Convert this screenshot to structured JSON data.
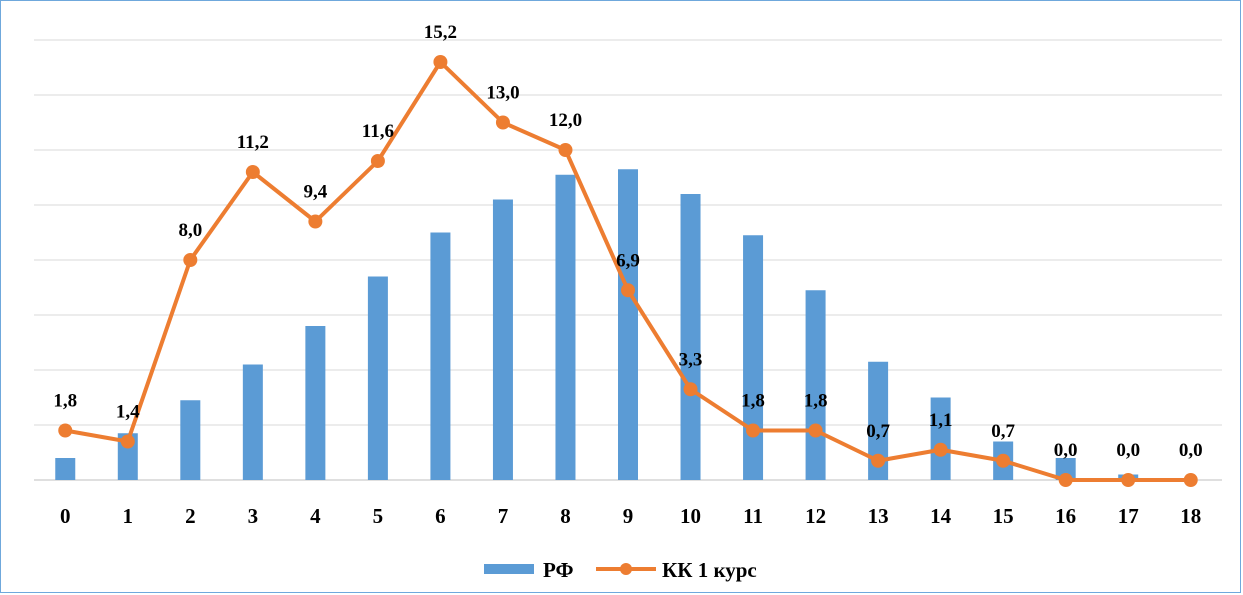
{
  "chart_data": {
    "type": "bar+line",
    "categories": [
      "0",
      "1",
      "2",
      "3",
      "4",
      "5",
      "6",
      "7",
      "8",
      "9",
      "10",
      "11",
      "12",
      "13",
      "14",
      "15",
      "16",
      "17",
      "18"
    ],
    "series": [
      {
        "name": "РФ",
        "type": "bar",
        "color": "#5b9bd5",
        "values": [
          0.8,
          1.7,
          2.9,
          4.2,
          5.6,
          7.4,
          9.0,
          10.2,
          11.1,
          11.3,
          10.4,
          8.9,
          6.9,
          4.3,
          3.0,
          1.4,
          0.8,
          0.2,
          0.0
        ]
      },
      {
        "name": "КК 1 курс",
        "type": "line",
        "color": "#ed7d31",
        "values": [
          1.8,
          1.4,
          8.0,
          11.2,
          9.4,
          11.6,
          15.2,
          13.0,
          12.0,
          6.9,
          3.3,
          1.8,
          1.8,
          0.7,
          1.1,
          0.7,
          0.0,
          0.0,
          0.0
        ],
        "labels": [
          "1,8",
          "1,4",
          "8,0",
          "11,2",
          "9,4",
          "11,6",
          "15,2",
          "13,0",
          "12,0",
          "6,9",
          "3,3",
          "1,8",
          "1,8",
          "0,7",
          "1,1",
          "0,7",
          "0,0",
          "0,0",
          "0,0"
        ]
      }
    ],
    "ylim": [
      0,
      16
    ],
    "grid": true,
    "legend": "bottom"
  }
}
